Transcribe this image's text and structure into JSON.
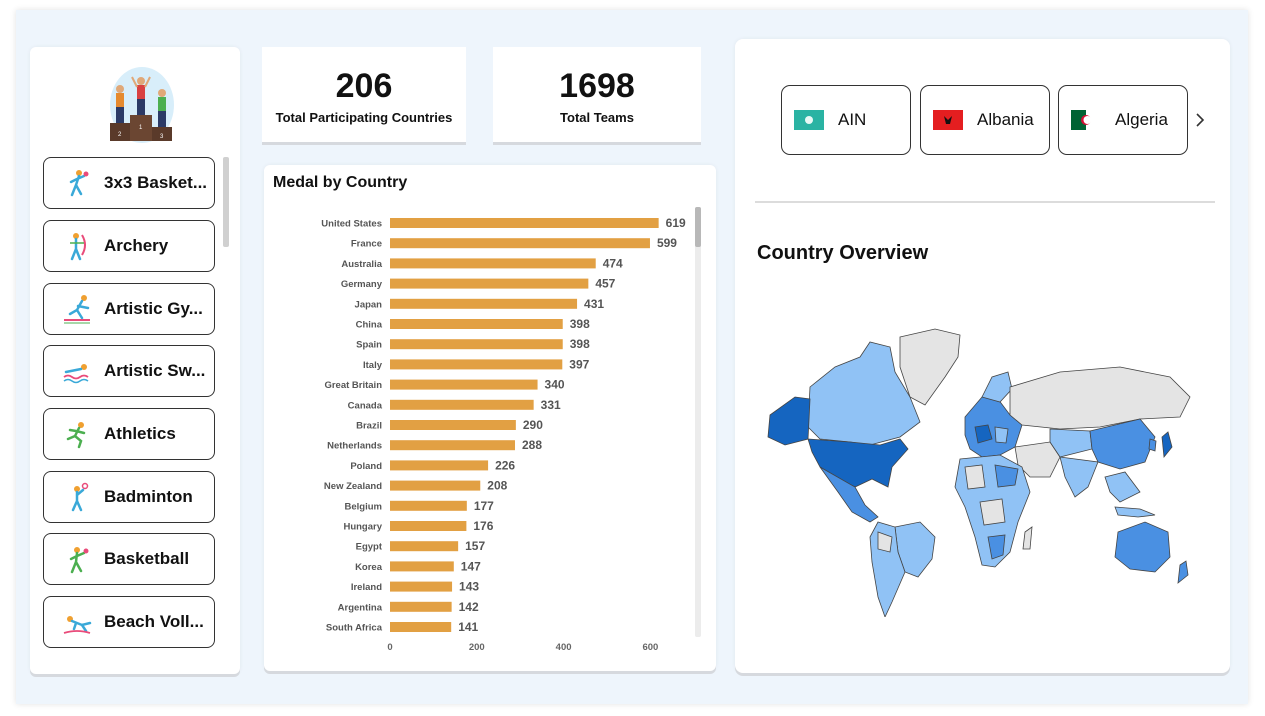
{
  "kpis": {
    "countries": {
      "value": "206",
      "label": "Total Participating Countries"
    },
    "teams": {
      "value": "1698",
      "label": "Total Teams"
    }
  },
  "sports": [
    {
      "label": "3x3 Basket...",
      "icon": "basketball-player-icon"
    },
    {
      "label": "Archery",
      "icon": "archer-icon"
    },
    {
      "label": "Artistic Gy...",
      "icon": "gymnast-icon"
    },
    {
      "label": "Artistic Sw...",
      "icon": "swimmer-icon"
    },
    {
      "label": "Athletics",
      "icon": "runner-icon"
    },
    {
      "label": "Badminton",
      "icon": "badminton-player-icon"
    },
    {
      "label": "Basketball",
      "icon": "basketball-player-icon"
    },
    {
      "label": "Beach Voll...",
      "icon": "volleyball-player-icon"
    }
  ],
  "chart_title": "Medal by Country",
  "chart_data": {
    "type": "bar",
    "orientation": "horizontal",
    "categories": [
      "United States",
      "France",
      "Australia",
      "Germany",
      "Japan",
      "China",
      "Spain",
      "Italy",
      "Great Britain",
      "Canada",
      "Brazil",
      "Netherlands",
      "Poland",
      "New Zealand",
      "Belgium",
      "Hungary",
      "Egypt",
      "Korea",
      "Ireland",
      "Argentina",
      "South Africa"
    ],
    "values": [
      619,
      599,
      474,
      457,
      431,
      398,
      398,
      397,
      340,
      331,
      290,
      288,
      226,
      208,
      177,
      176,
      157,
      147,
      143,
      142,
      141
    ],
    "xlim": [
      0,
      700
    ],
    "xticks": [
      0,
      200,
      400,
      600
    ],
    "bar_color": "#e2a043",
    "grid": false
  },
  "countries": [
    {
      "name": "AIN",
      "flag": "ain-flag-icon"
    },
    {
      "name": "Albania",
      "flag": "albania-flag-icon"
    },
    {
      "name": "Algeria",
      "flag": "algeria-flag-icon"
    }
  ],
  "map_title": "Country Overview",
  "colors": {
    "accent": "#e2a043",
    "map_dark": "#1565c0",
    "map_mid": "#4a90e2",
    "map_light": "#90c2f5",
    "map_none": "#e4e4e4"
  }
}
